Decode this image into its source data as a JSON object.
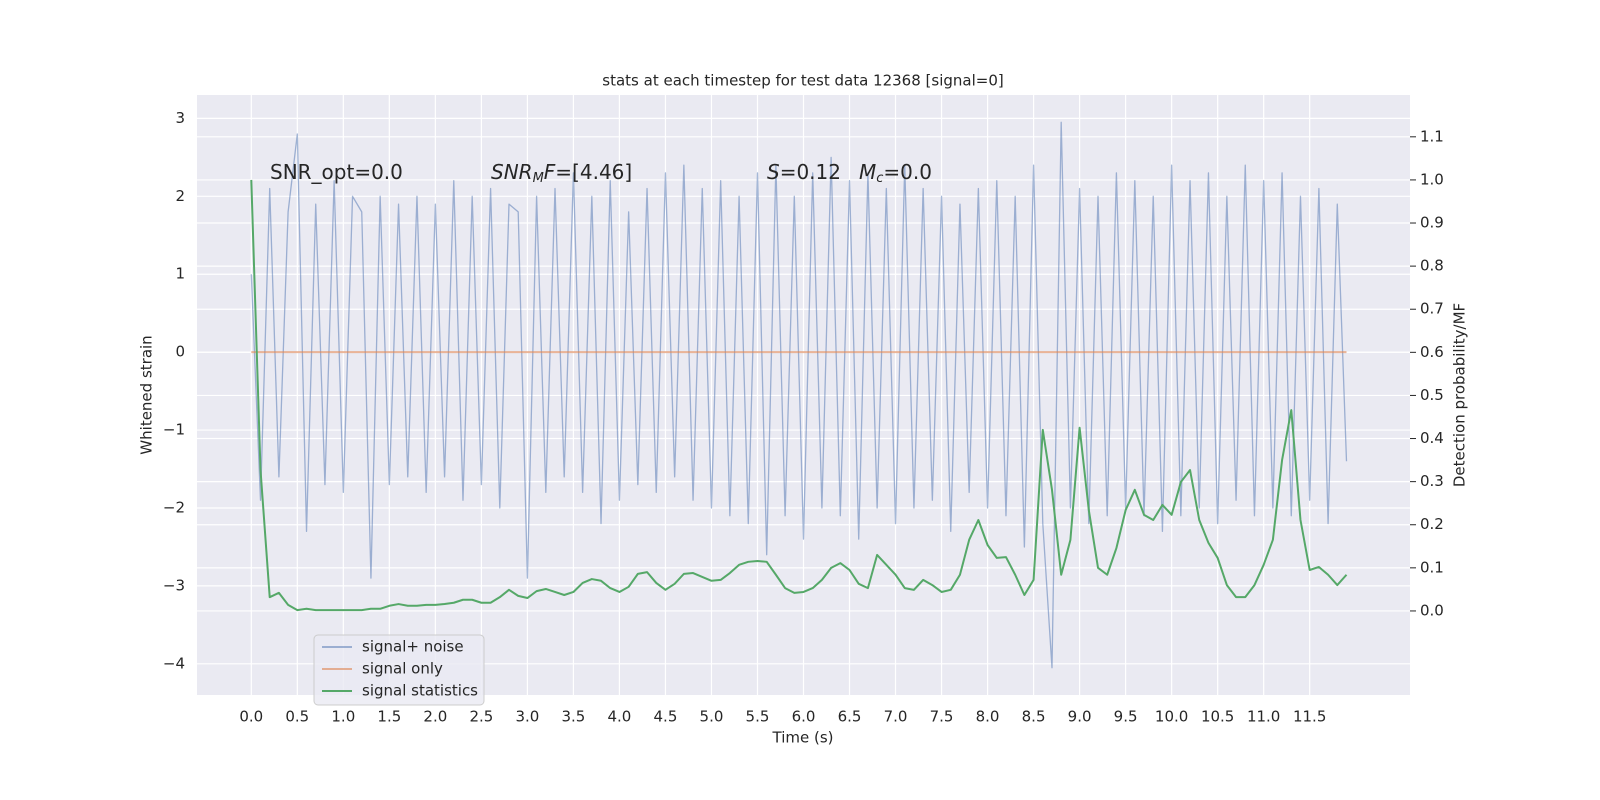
{
  "chart_data": {
    "type": "line",
    "title": "stats at each timestep for test data 12368 [signal=0]",
    "xlabel": "Time (s)",
    "ylabel": "Whitened strain",
    "y2label": "Detection probability/MF",
    "grid": true,
    "background": "#eaeaf2",
    "xlim": [
      -0.59,
      12.59
    ],
    "ylim": [
      -4.4,
      3.3
    ],
    "y2lim": [
      -0.195,
      1.197
    ],
    "xticks": [
      {
        "value": 0,
        "label": "0.0"
      },
      0.5,
      {
        "value": 1,
        "label": "1.0"
      },
      1.5,
      {
        "value": 2,
        "label": "2.0"
      },
      2.5,
      {
        "value": 3,
        "label": "3.0"
      },
      3.5,
      {
        "value": 4,
        "label": "4.0"
      },
      4.5,
      {
        "value": 5,
        "label": "5.0"
      },
      5.5,
      {
        "value": 6,
        "label": "6.0"
      },
      6.5,
      {
        "value": 7,
        "label": "7.0"
      },
      7.5,
      {
        "value": 8,
        "label": "8.0"
      },
      8.5,
      {
        "value": 9,
        "label": "9.0"
      },
      9.5,
      {
        "value": 10,
        "label": "10.0"
      },
      10.5,
      {
        "value": 11,
        "label": "11.0"
      },
      11.5
    ],
    "yticks": [
      {
        "value": -4,
        "label": "−4"
      },
      {
        "value": -3,
        "label": "−3"
      },
      {
        "value": -2,
        "label": "−2"
      },
      {
        "value": -1,
        "label": "−1"
      },
      0,
      1,
      2,
      3
    ],
    "y2ticks": [
      {
        "value": 0,
        "label": "0.0"
      },
      0.1,
      0.2,
      0.3,
      0.4,
      0.5,
      0.6,
      0.7,
      0.8,
      0.9,
      {
        "value": 1,
        "label": "1.0"
      },
      1.1
    ],
    "annotations": [
      {
        "parts": [
          {
            "text": "SNR_opt=0.0"
          }
        ]
      },
      {
        "parts": [
          {
            "text": "SNR",
            "style": "italic"
          },
          {
            "text": "M",
            "style": "sub"
          },
          {
            "text": "F",
            "style": "italic"
          },
          {
            "text": "=[4.46]"
          }
        ]
      },
      {
        "parts": [
          {
            "text": "S",
            "style": "italic"
          },
          {
            "text": "=0.12"
          }
        ]
      },
      {
        "parts": [
          {
            "text": "M",
            "style": "italic"
          },
          {
            "text": "c",
            "style": "sub"
          },
          {
            "text": "=0.0"
          }
        ]
      }
    ],
    "x": [
      0.0,
      0.1,
      0.2,
      0.3,
      0.4,
      0.5,
      0.6,
      0.7,
      0.8,
      0.9,
      1.0,
      1.1,
      1.2,
      1.3,
      1.4,
      1.5,
      1.6,
      1.7,
      1.8,
      1.9,
      2.0,
      2.1,
      2.2,
      2.3,
      2.4,
      2.5,
      2.6,
      2.7,
      2.8,
      2.9,
      3.0,
      3.1,
      3.2,
      3.3,
      3.4,
      3.5,
      3.6,
      3.7,
      3.8,
      3.9,
      4.0,
      4.1,
      4.2,
      4.3,
      4.4,
      4.5,
      4.6,
      4.7,
      4.8,
      4.9,
      5.0,
      5.1,
      5.2,
      5.3,
      5.4,
      5.5,
      5.6,
      5.7,
      5.8,
      5.9,
      6.0,
      6.1,
      6.2,
      6.3,
      6.4,
      6.5,
      6.6,
      6.7,
      6.8,
      6.9,
      7.0,
      7.1,
      7.2,
      7.3,
      7.4,
      7.5,
      7.6,
      7.7,
      7.8,
      7.9,
      8.0,
      8.1,
      8.2,
      8.3,
      8.4,
      8.5,
      8.6,
      8.7,
      8.8,
      8.9,
      9.0,
      9.1,
      9.2,
      9.3,
      9.4,
      9.5,
      9.6,
      9.7,
      9.8,
      9.9,
      10.0,
      10.1,
      10.2,
      10.3,
      10.4,
      10.5,
      10.6,
      10.7,
      10.8,
      10.9,
      11.0,
      11.1,
      11.2,
      11.3,
      11.4,
      11.5,
      11.6,
      11.7,
      11.8,
      11.9
    ],
    "series": [
      {
        "name": "signal+ noise",
        "color": "#4c72b0",
        "opacity": 0.5,
        "values": [
          1.0,
          -1.9,
          2.1,
          -1.6,
          1.8,
          2.8,
          -2.3,
          1.9,
          -1.7,
          2.2,
          -1.8,
          2.0,
          1.8,
          -2.9,
          2.0,
          -1.7,
          1.9,
          -1.6,
          2.0,
          -1.8,
          1.9,
          -1.6,
          2.2,
          -1.9,
          2.0,
          -1.7,
          2.1,
          -2.0,
          1.9,
          1.8,
          -2.9,
          2.0,
          -1.8,
          2.1,
          -1.6,
          2.3,
          -1.8,
          2.0,
          -2.2,
          2.2,
          -1.9,
          1.8,
          -1.7,
          2.1,
          -1.8,
          2.3,
          -1.6,
          2.4,
          -1.9,
          2.1,
          -2.0,
          2.2,
          -2.1,
          2.0,
          -2.2,
          2.3,
          -2.6,
          2.4,
          -2.1,
          2.0,
          -2.4,
          2.3,
          -2.0,
          2.5,
          -2.1,
          2.2,
          -2.4,
          2.3,
          -2.0,
          2.1,
          -2.2,
          2.4,
          -2.0,
          2.1,
          -1.9,
          2.0,
          -2.3,
          1.9,
          -1.8,
          2.1,
          -2.0,
          2.2,
          -2.1,
          2.0,
          -2.5,
          2.4,
          -2.2,
          -4.05,
          2.95,
          -2.0,
          2.1,
          -2.2,
          2.0,
          -2.1,
          2.3,
          -2.0,
          2.2,
          -2.1,
          2.0,
          -2.3,
          2.4,
          -2.1,
          2.2,
          -2.0,
          2.3,
          -2.2,
          2.0,
          -1.9,
          2.4,
          -2.1,
          2.2,
          -2.0,
          2.3,
          -2.1,
          2.0,
          -1.9,
          2.1,
          -2.2,
          1.9,
          -1.4
        ]
      },
      {
        "name": "signal only",
        "color": "#dd8452",
        "opacity": 0.6,
        "values": [
          0,
          0,
          0,
          0,
          0,
          0,
          0,
          0,
          0,
          0,
          0,
          0,
          0,
          0,
          0,
          0,
          0,
          0,
          0,
          0,
          0,
          0,
          0,
          0,
          0,
          0,
          0,
          0,
          0,
          0,
          0,
          0,
          0,
          0,
          0,
          0,
          0,
          0,
          0,
          0,
          0,
          0,
          0,
          0,
          0,
          0,
          0,
          0,
          0,
          0,
          0,
          0,
          0,
          0,
          0,
          0,
          0,
          0,
          0,
          0,
          0,
          0,
          0,
          0,
          0,
          0,
          0,
          0,
          0,
          0,
          0,
          0,
          0,
          0,
          0,
          0,
          0,
          0,
          0,
          0,
          0,
          0,
          0,
          0,
          0,
          0,
          0,
          0,
          0,
          0,
          0,
          0,
          0,
          0,
          0,
          0,
          0,
          0,
          0,
          0,
          0,
          0,
          0,
          0,
          0,
          0,
          0,
          0,
          0,
          0,
          0,
          0,
          0,
          0,
          0,
          0,
          0,
          0,
          0,
          0
        ]
      },
      {
        "name": "signal statistics",
        "color": "#55a868",
        "opacity": 1,
        "axis": "y2",
        "values": [
          1.0,
          0.327,
          0.032,
          0.042,
          0.014,
          0.002,
          0.005,
          0.002,
          0.002,
          0.002,
          0.002,
          0.002,
          0.002,
          0.005,
          0.005,
          0.012,
          0.016,
          0.012,
          0.012,
          0.014,
          0.014,
          0.016,
          0.019,
          0.026,
          0.026,
          0.019,
          0.019,
          0.032,
          0.049,
          0.035,
          0.03,
          0.046,
          0.051,
          0.044,
          0.037,
          0.044,
          0.065,
          0.074,
          0.07,
          0.053,
          0.044,
          0.056,
          0.086,
          0.09,
          0.065,
          0.049,
          0.063,
          0.086,
          0.088,
          0.079,
          0.07,
          0.072,
          0.088,
          0.107,
          0.114,
          0.116,
          0.114,
          0.084,
          0.053,
          0.042,
          0.044,
          0.053,
          0.072,
          0.1,
          0.111,
          0.095,
          0.063,
          0.053,
          0.13,
          0.107,
          0.084,
          0.053,
          0.049,
          0.072,
          0.06,
          0.044,
          0.049,
          0.084,
          0.165,
          0.211,
          0.153,
          0.123,
          0.125,
          0.084,
          0.037,
          0.072,
          0.42,
          0.281,
          0.084,
          0.165,
          0.425,
          0.234,
          0.1,
          0.084,
          0.146,
          0.234,
          0.281,
          0.223,
          0.211,
          0.246,
          0.223,
          0.299,
          0.327,
          0.211,
          0.158,
          0.123,
          0.06,
          0.032,
          0.032,
          0.06,
          0.107,
          0.165,
          0.35,
          0.466,
          0.211,
          0.095,
          0.102,
          0.084,
          0.06,
          0.084
        ]
      }
    ]
  }
}
